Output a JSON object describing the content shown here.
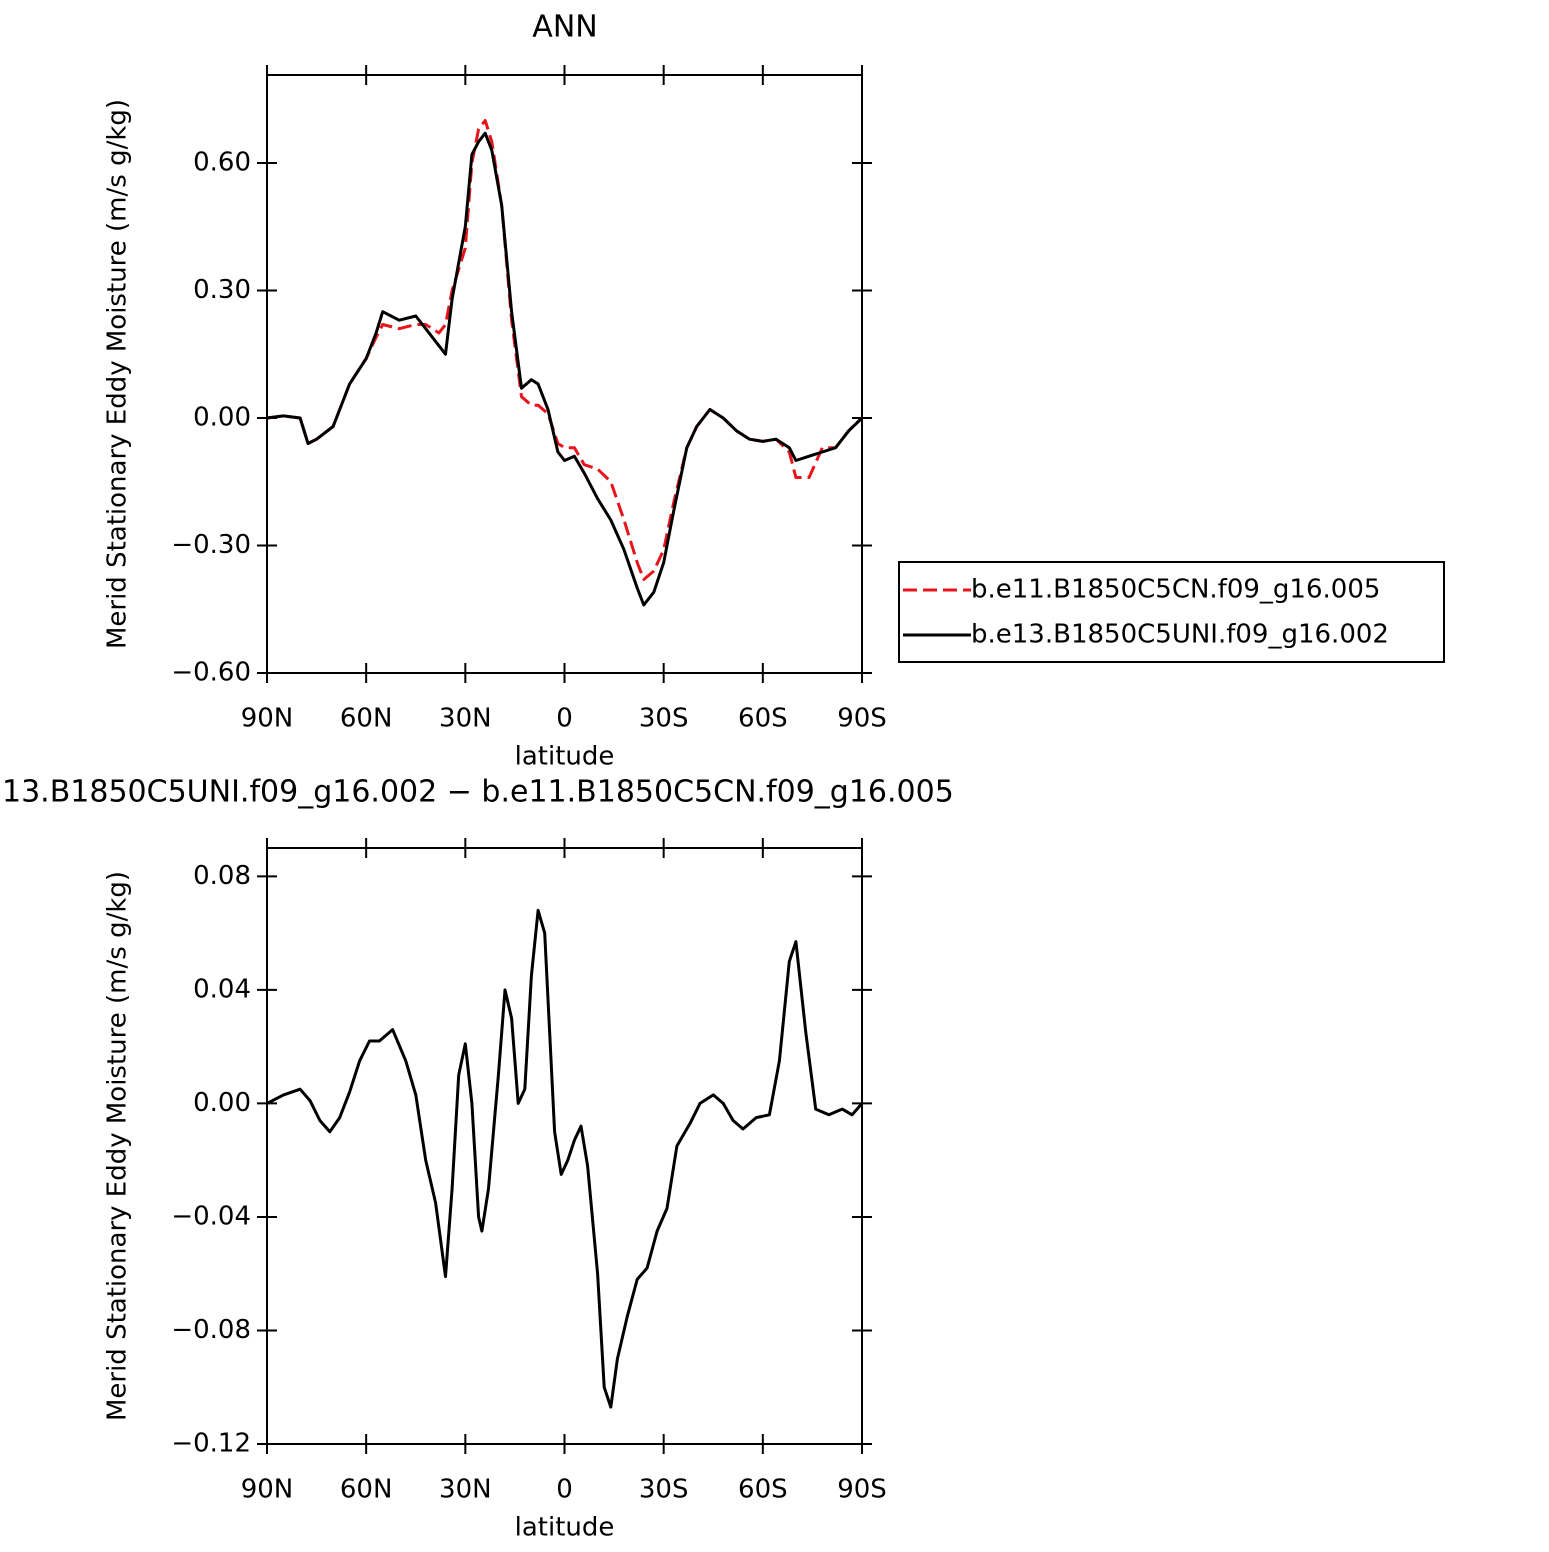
{
  "chart_data": [
    {
      "type": "line",
      "title": "ANN",
      "xlabel": "latitude",
      "ylabel": "Merid Stationary Eddy Moisture (m/s g/kg)",
      "xlim": [
        90,
        -90
      ],
      "xticks": [
        {
          "value": 90,
          "label": "90N"
        },
        {
          "value": 60,
          "label": "60N"
        },
        {
          "value": 30,
          "label": "30N"
        },
        0,
        {
          "value": -30,
          "label": "30S"
        },
        {
          "value": -60,
          "label": "60S"
        },
        {
          "value": -90,
          "label": "90S"
        }
      ],
      "ylim": [
        -0.6,
        0.807
      ],
      "yticks": [
        {
          "value": -0.6,
          "label": "−0.60"
        },
        {
          "value": -0.3,
          "label": "−0.30"
        },
        {
          "value": 0,
          "label": "0.00"
        },
        {
          "value": 0.3,
          "label": "0.30"
        },
        {
          "value": 0.6,
          "label": "0.60"
        }
      ],
      "x": [
        90,
        85,
        80,
        77.6,
        75,
        70,
        65,
        60,
        57,
        55,
        50,
        45,
        42,
        38,
        36,
        34,
        30,
        28,
        26,
        24,
        22,
        19,
        16,
        13,
        10,
        8,
        5,
        2,
        0,
        -3,
        -6,
        -10,
        -14,
        -18,
        -22,
        -24,
        -27,
        -30,
        -33,
        -37,
        -40,
        -44,
        -48,
        -52,
        -56,
        -60,
        -64,
        -68,
        -70,
        -74,
        -78,
        -82,
        -86,
        -90
      ],
      "legend": "outside-right",
      "series": [
        {
          "name": "b.e11.B1850C5CN.f09_g16.005",
          "color": "#e8141b",
          "dash": "dashed",
          "values": [
            0,
            0.005,
            0,
            -0.06,
            -0.05,
            -0.02,
            0.08,
            0.14,
            0.19,
            0.22,
            0.21,
            0.22,
            0.22,
            0.2,
            0.22,
            0.3,
            0.4,
            0.6,
            0.68,
            0.7,
            0.65,
            0.5,
            0.23,
            0.05,
            0.03,
            0.03,
            0.01,
            -0.06,
            -0.07,
            -0.07,
            -0.11,
            -0.12,
            -0.15,
            -0.24,
            -0.34,
            -0.38,
            -0.36,
            -0.31,
            -0.2,
            -0.07,
            -0.02,
            0.02,
            0,
            -0.03,
            -0.05,
            -0.055,
            -0.05,
            -0.08,
            -0.14,
            -0.14,
            -0.07,
            -0.07,
            -0.03,
            0
          ]
        },
        {
          "name": "b.e13.B1850C5UNI.f09_g16.002",
          "color": "#000000",
          "dash": "solid",
          "values": [
            0,
            0.005,
            0,
            -0.06,
            -0.05,
            -0.02,
            0.08,
            0.14,
            0.2,
            0.25,
            0.23,
            0.24,
            0.21,
            0.17,
            0.15,
            0.28,
            0.45,
            0.62,
            0.65,
            0.67,
            0.63,
            0.5,
            0.25,
            0.07,
            0.09,
            0.08,
            0.02,
            -0.08,
            -0.1,
            -0.09,
            -0.13,
            -0.19,
            -0.24,
            -0.31,
            -0.4,
            -0.44,
            -0.41,
            -0.34,
            -0.22,
            -0.07,
            -0.02,
            0.02,
            0,
            -0.03,
            -0.05,
            -0.055,
            -0.05,
            -0.07,
            -0.1,
            -0.09,
            -0.08,
            -0.07,
            -0.03,
            0
          ]
        }
      ]
    },
    {
      "type": "line",
      "title": "13.B1850C5UNI.f09_g16.002 − b.e11.B1850C5CN.f09_g16.005",
      "xlabel": "latitude",
      "ylabel": "Merid Stationary Eddy Moisture (m/s g/kg)",
      "xlim": [
        90,
        -90
      ],
      "xticks": [
        {
          "value": 90,
          "label": "90N"
        },
        {
          "value": 60,
          "label": "60N"
        },
        {
          "value": 30,
          "label": "30N"
        },
        0,
        {
          "value": -30,
          "label": "30S"
        },
        {
          "value": -60,
          "label": "60S"
        },
        {
          "value": -90,
          "label": "90S"
        }
      ],
      "ylim": [
        -0.12,
        0.09
      ],
      "yticks": [
        {
          "value": -0.12,
          "label": "−0.12"
        },
        {
          "value": -0.08,
          "label": "−0.08"
        },
        {
          "value": -0.04,
          "label": "−0.04"
        },
        {
          "value": 0,
          "label": "0.00"
        },
        {
          "value": 0.04,
          "label": "0.04"
        },
        {
          "value": 0.08,
          "label": "0.08"
        }
      ],
      "x": [
        90,
        85,
        80,
        77,
        74,
        71,
        68,
        65,
        62,
        59,
        56,
        52,
        48,
        45,
        42,
        39,
        36,
        34,
        32,
        30,
        28,
        26,
        25,
        23,
        20,
        18,
        16,
        14,
        12,
        10,
        8,
        6,
        3,
        1,
        -1,
        -3,
        -5,
        -7,
        -10,
        -12,
        -14,
        -16,
        -19,
        -22,
        -25,
        -28,
        -31,
        -34,
        -38,
        -41,
        -45,
        -48,
        -51,
        -54,
        -58,
        -62,
        -65,
        -68,
        -70,
        -73,
        -76,
        -80,
        -84,
        -87,
        -90
      ],
      "series": [
        {
          "color": "#000000",
          "dash": "solid",
          "values": [
            0,
            0.003,
            0.005,
            0.001,
            -0.006,
            -0.01,
            -0.005,
            0.004,
            0.015,
            0.022,
            0.022,
            0.026,
            0.015,
            0.003,
            -0.02,
            -0.035,
            -0.061,
            -0.03,
            0.01,
            0.021,
            0,
            -0.04,
            -0.045,
            -0.03,
            0.01,
            0.04,
            0.03,
            0,
            0.005,
            0.045,
            0.068,
            0.06,
            -0.01,
            -0.025,
            -0.02,
            -0.013,
            -0.008,
            -0.022,
            -0.06,
            -0.1,
            -0.107,
            -0.09,
            -0.075,
            -0.062,
            -0.058,
            -0.045,
            -0.037,
            -0.015,
            -0.007,
            0,
            0.003,
            0,
            -0.006,
            -0.009,
            -0.005,
            -0.004,
            0.015,
            0.05,
            0.057,
            0.025,
            -0.002,
            -0.004,
            -0.002,
            -0.004,
            0
          ]
        }
      ]
    }
  ]
}
